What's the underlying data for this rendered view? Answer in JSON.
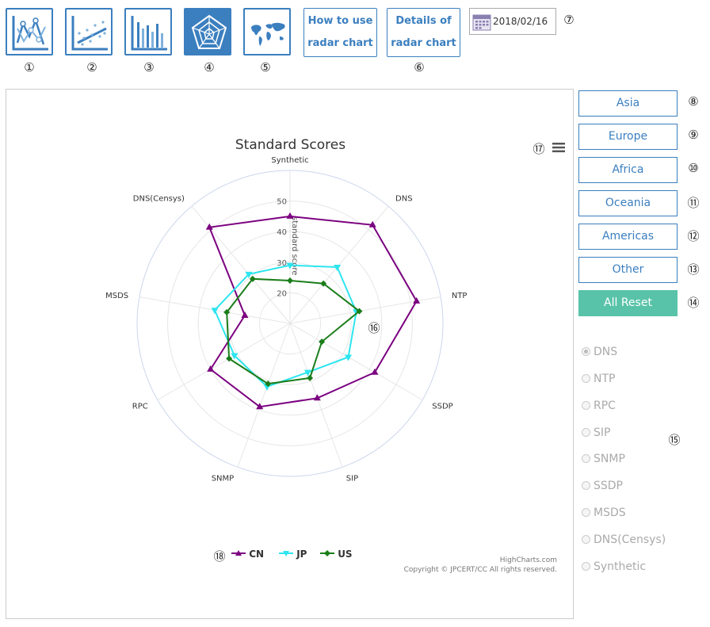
{
  "toolbar": {
    "markers": [
      "①",
      "②",
      "③",
      "④",
      "⑤",
      "⑥",
      "⑦"
    ],
    "how_to_line1": "How to use",
    "how_to_line2": "radar chart",
    "details_line1": "Details of",
    "details_line2": "radar chart",
    "date_value": "2018/02/16",
    "icons": [
      "line-chart-icon",
      "scatter-chart-icon",
      "bar-chart-icon",
      "radar-chart-icon",
      "world-map-icon",
      "calendar-icon"
    ],
    "active_index": 3,
    "accent_color": "#3b7fbf"
  },
  "regions": {
    "buttons": [
      {
        "label": "Asia",
        "marker": "⑧"
      },
      {
        "label": "Europe",
        "marker": "⑨"
      },
      {
        "label": "Africa",
        "marker": "⑩"
      },
      {
        "label": "Oceania",
        "marker": "⑪"
      },
      {
        "label": "Americas",
        "marker": "⑫"
      },
      {
        "label": "Other",
        "marker": "⑬"
      }
    ],
    "reset": {
      "label": "All Reset",
      "marker": "⑭",
      "color": "#58c3a8"
    }
  },
  "protocols": {
    "marker": "⑮",
    "items": [
      "DNS",
      "NTP",
      "RPC",
      "SIP",
      "SNMP",
      "SSDP",
      "MSDS",
      "DNS(Censys)",
      "Synthetic"
    ],
    "selected": "DNS"
  },
  "chart_markers": {
    "area": "⑯",
    "menu": "⑰",
    "legend": "⑱"
  },
  "credits": {
    "line1": "HighCharts.com",
    "line2": "Copyright © JPCERT/CC All rights reserved."
  },
  "chart_data": {
    "type": "radar",
    "title": "Standard Scores",
    "axis_label": "standard score",
    "categories": [
      "Synthetic",
      "DNS",
      "NTP",
      "SSDP",
      "SIP",
      "SNMP",
      "RPC",
      "MSDS",
      "DNS(Censys)"
    ],
    "radial_ticks": [
      20,
      30,
      40,
      50
    ],
    "rlim": [
      10,
      60
    ],
    "series": [
      {
        "name": "CN",
        "color": "#7b0080",
        "marker": "triangle",
        "values": [
          45,
          52,
          52,
          42,
          36,
          39,
          40,
          25,
          51
        ]
      },
      {
        "name": "JP",
        "color": "#2ee5ef",
        "marker": "triangle-down",
        "values": [
          29,
          34,
          32,
          32,
          27,
          32,
          31,
          35,
          31
        ]
      },
      {
        "name": "US",
        "color": "#1a7d1a",
        "marker": "diamond",
        "values": [
          24,
          27,
          33,
          22,
          29,
          31,
          33,
          31,
          29
        ]
      }
    ]
  }
}
